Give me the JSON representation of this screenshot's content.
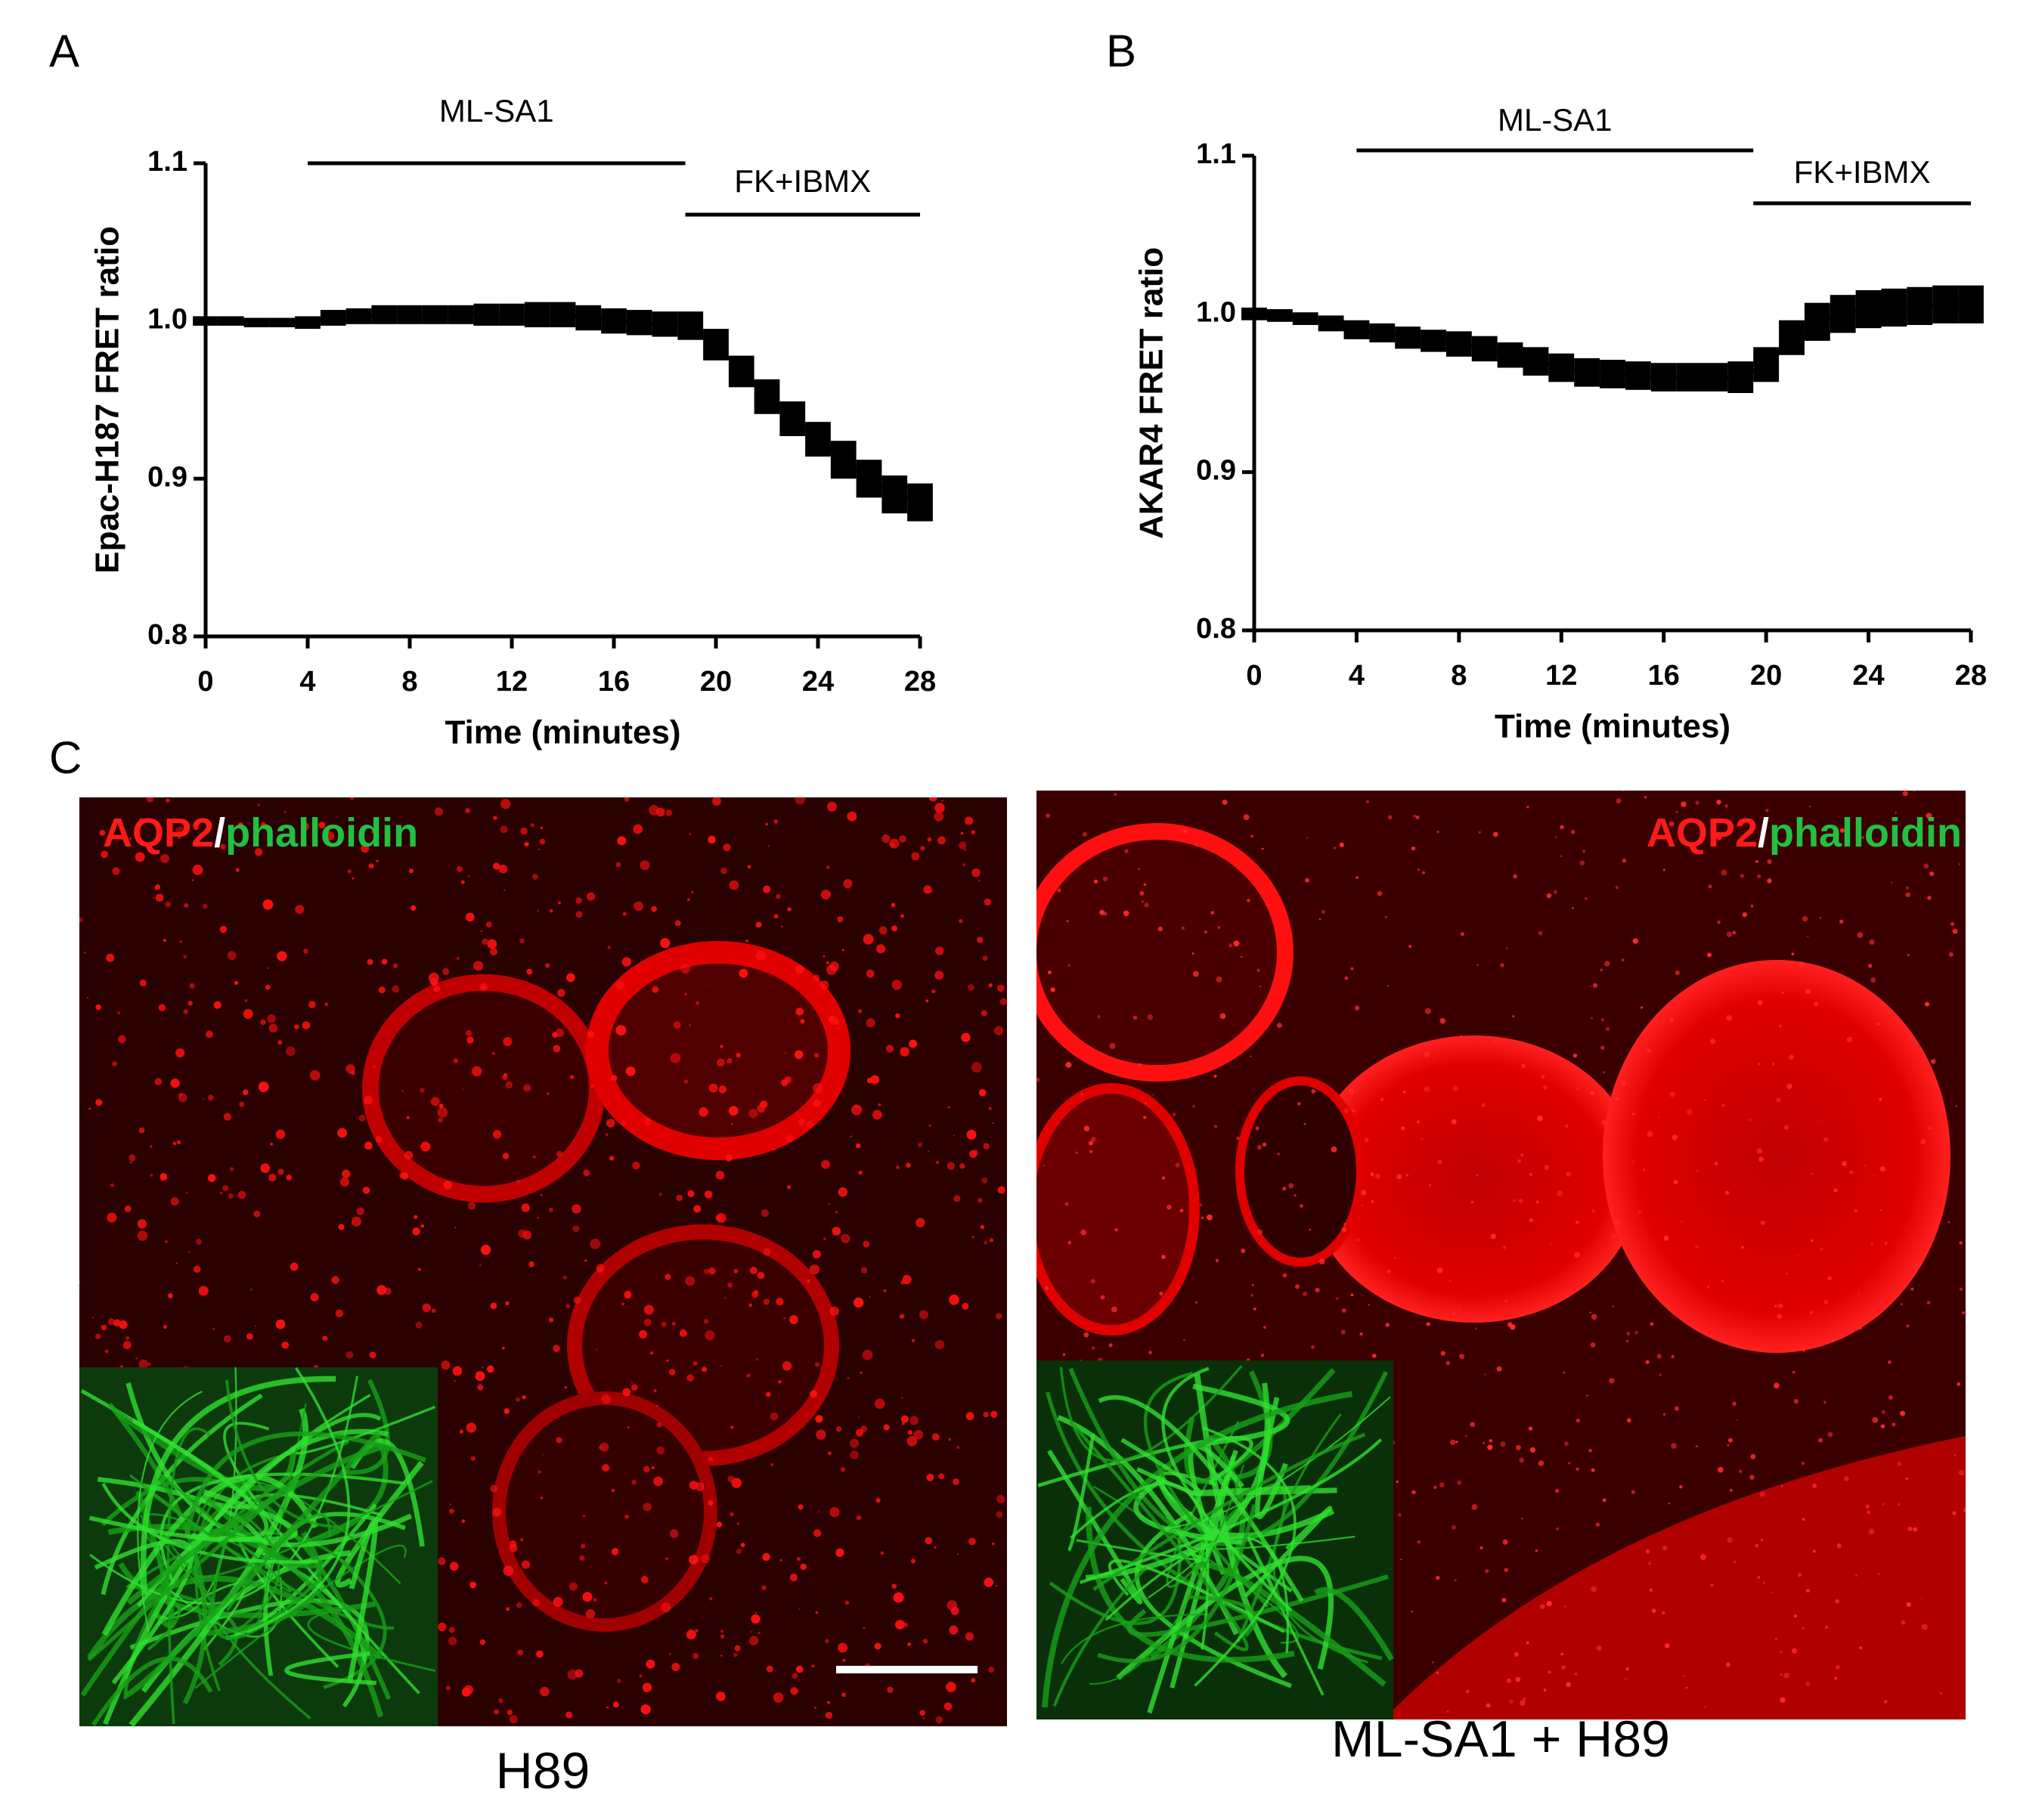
{
  "chart_data": [
    {
      "type": "line",
      "panel": "A",
      "xlabel": "Time (minutes)",
      "ylabel": "Epac-H187 FRET ratio",
      "x": [
        0,
        1,
        2,
        3,
        4,
        5,
        6,
        7,
        8,
        9,
        10,
        11,
        12,
        13,
        14,
        15,
        16,
        17,
        18,
        19,
        20,
        21,
        22,
        23,
        24,
        25,
        26,
        27,
        28
      ],
      "series": [
        {
          "color": "#000000",
          "values": [
            1.0,
            1.0,
            0.999,
            0.999,
            0.999,
            1.002,
            1.003,
            1.004,
            1.004,
            1.004,
            1.004,
            1.004,
            1.004,
            1.004,
            1.004,
            1.002,
            1.0,
            0.999,
            0.998,
            0.997,
            0.985,
            0.968,
            0.952,
            0.938,
            0.925,
            0.912,
            0.9,
            0.89,
            0.885
          ],
          "errors": [
            0.003,
            0.003,
            0.003,
            0.003,
            0.004,
            0.005,
            0.005,
            0.006,
            0.006,
            0.006,
            0.006,
            0.007,
            0.007,
            0.008,
            0.008,
            0.008,
            0.008,
            0.008,
            0.008,
            0.009,
            0.01,
            0.01,
            0.011,
            0.011,
            0.011,
            0.012,
            0.012,
            0.012,
            0.012
          ]
        }
      ],
      "annotations": [
        {
          "text": "ML-SA1",
          "start": 4,
          "end": 18.8
        },
        {
          "text": "FK+IBMX",
          "start": 18.8,
          "end": 28
        }
      ],
      "xlim": [
        0,
        28
      ],
      "xticks": [
        0,
        4,
        8,
        12,
        16,
        20,
        24,
        28
      ],
      "ylim": [
        0.8,
        1.1
      ],
      "yticks": [
        0.8,
        0.9,
        {
          "value": 1,
          "label": "1.0"
        },
        1.1
      ]
    },
    {
      "type": "line",
      "panel": "B",
      "xlabel": "Time (minutes)",
      "ylabel": "AKAR4 FRET ratio",
      "x": [
        0,
        1,
        2,
        3,
        4,
        5,
        6,
        7,
        8,
        9,
        10,
        11,
        12,
        13,
        14,
        15,
        16,
        17,
        18,
        19,
        20,
        21,
        22,
        23,
        24,
        25,
        26,
        27,
        28
      ],
      "series": [
        {
          "color": "#000000",
          "values": [
            1.0,
            0.999,
            0.997,
            0.994,
            0.99,
            0.988,
            0.985,
            0.983,
            0.981,
            0.978,
            0.974,
            0.97,
            0.966,
            0.963,
            0.962,
            0.961,
            0.96,
            0.96,
            0.96,
            0.96,
            0.968,
            0.985,
            0.995,
            1.0,
            1.003,
            1.004,
            1.005,
            1.006,
            1.006
          ],
          "errors": [
            0.004,
            0.004,
            0.004,
            0.005,
            0.006,
            0.006,
            0.007,
            0.007,
            0.008,
            0.008,
            0.008,
            0.009,
            0.009,
            0.009,
            0.009,
            0.009,
            0.009,
            0.009,
            0.009,
            0.01,
            0.011,
            0.011,
            0.012,
            0.012,
            0.012,
            0.012,
            0.012,
            0.012,
            0.012
          ]
        }
      ],
      "annotations": [
        {
          "text": "ML-SA1",
          "start": 4,
          "end": 19.5
        },
        {
          "text": "FK+IBMX",
          "start": 19.5,
          "end": 28
        }
      ],
      "xlim": [
        0,
        28
      ],
      "xticks": [
        0,
        4,
        8,
        12,
        16,
        20,
        24,
        28
      ],
      "ylim": [
        0.8,
        1.1
      ],
      "yticks": [
        0.8,
        0.9,
        {
          "value": 1,
          "label": "1.0"
        },
        1.1
      ]
    }
  ],
  "panel_c": {
    "panel": "C",
    "images": [
      {
        "red": "AQP2",
        "sep": "/",
        "green": "phalloidin",
        "caption": "H89"
      },
      {
        "red": "AQP2",
        "sep": "/",
        "green": "phalloidin",
        "caption": "ML-SA1 + H89"
      }
    ]
  }
}
